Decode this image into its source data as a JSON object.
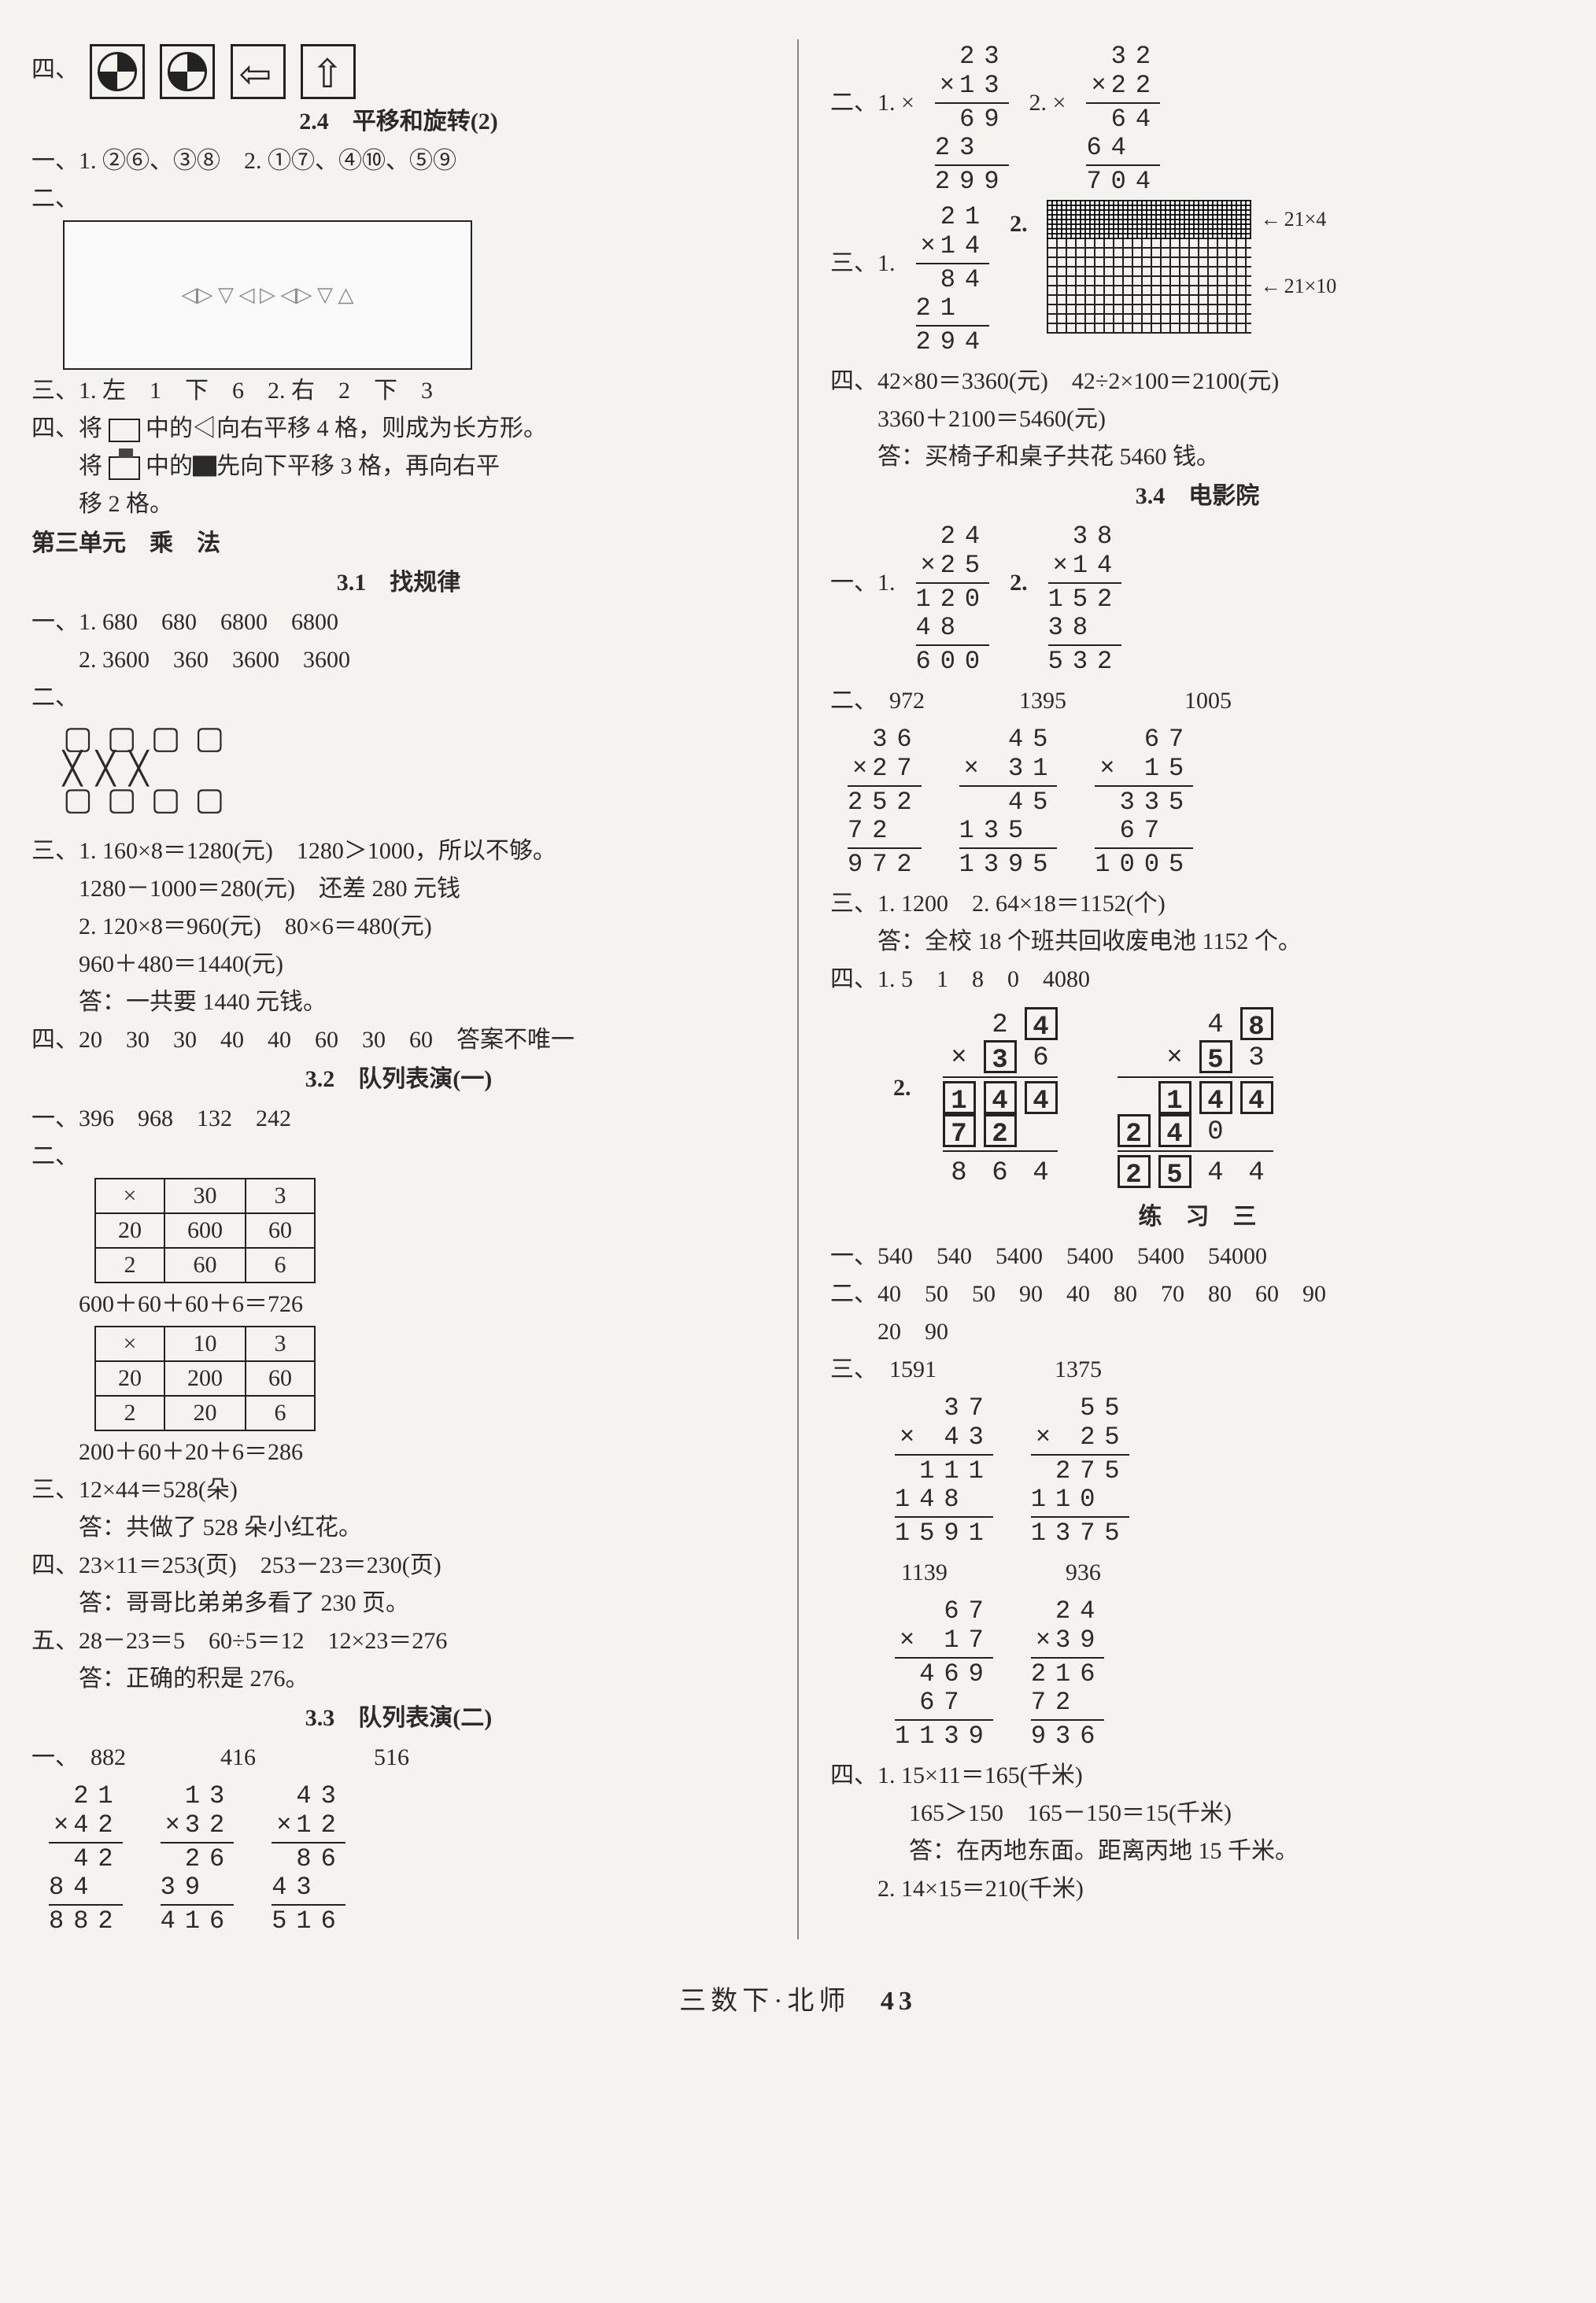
{
  "left": {
    "four_label": "四、",
    "s24_title": "2.4　平移和旋转(2)",
    "s24_l1": "一、1. ②⑥、③⑧　2. ①⑦、④⑩、⑤⑨",
    "s24_l2": "二、",
    "s24_l3": "三、1. 左　1　下　6　2. 右　2　下　3",
    "s24_l4a": "四、将",
    "s24_l4b": "中的◁向右平移 4 格，则成为长方形。",
    "s24_l5a": "将",
    "s24_l5b": "中的▇先向下平移 3 格，再向右平",
    "s24_l5c": "移 2 格。",
    "unit3": "第三单元　乘　法",
    "s31_title": "3.1　找规律",
    "s31_l1": "一、1. 680　680　6800　6800",
    "s31_l2": "　　2. 3600　360　3600　3600",
    "s31_l2b": "二、",
    "cross_top": "▢ ▢ ▢ ▢",
    "cross_bot": "▢ ▢ ▢ ▢",
    "s31_l3": "三、1. 160×8＝1280(元)　1280＞1000，所以不够。",
    "s31_l4": "1280－1000＝280(元)　还差 280 元钱",
    "s31_l5": "2. 120×8＝960(元)　80×6＝480(元)",
    "s31_l6": "960＋480＝1440(元)",
    "s31_l7": "答：一共要 1440 元钱。",
    "s31_l8": "四、20　30　30　40　40　60　30　60　答案不唯一",
    "s32_title": "3.2　队列表演(一)",
    "s32_l1": "一、396　968　132　242",
    "s32_l2": "二、",
    "t1": {
      "h": [
        "×",
        "30",
        "3"
      ],
      "r1": [
        "20",
        "600",
        "60"
      ],
      "r2": [
        "2",
        "60",
        "6"
      ]
    },
    "s32_l3": "600＋60＋60＋6＝726",
    "t2": {
      "h": [
        "×",
        "10",
        "3"
      ],
      "r1": [
        "20",
        "200",
        "60"
      ],
      "r2": [
        "2",
        "20",
        "6"
      ]
    },
    "s32_l4": "200＋60＋20＋6＝286",
    "s32_l5": "三、12×44＝528(朵)",
    "s32_l6": "答：共做了 528 朵小红花。",
    "s32_l7": "四、23×11＝253(页)　253－23＝230(页)",
    "s32_l8": "答：哥哥比弟弟多看了 230 页。",
    "s32_l9": "五、28－23＝5　60÷5＝12　12×23＝276",
    "s32_l10": "答：正确的积是 276。",
    "s33_title": "3.3　队列表演(二)",
    "s33_l1": "一、　882　　　　416　　　　　516",
    "m1": {
      "a": "21",
      "b": "42",
      "p1": "42",
      "p2": "84",
      "r": "882"
    },
    "m2": {
      "a": "13",
      "b": "32",
      "p1": "26",
      "p2": "39",
      "r": "416"
    },
    "m3": {
      "a": "43",
      "b": "12",
      "p1": "86",
      "p2": "43",
      "r": "516"
    }
  },
  "right": {
    "r0_l": "二、1. ×",
    "r0_m": "2. ×",
    "rm1": {
      "a": "23",
      "b": "13",
      "p1": "69",
      "p2": "23",
      "r": "299"
    },
    "rm2": {
      "a": "32",
      "b": "22",
      "p1": "64",
      "p2": "64",
      "r": "704"
    },
    "r1_l": "三、1.",
    "rm3": {
      "a": "21",
      "b": "14",
      "p1": "84",
      "p2": "21",
      "r": "294"
    },
    "grid_t": "21×4",
    "grid_b": "21×10",
    "r1_2": "2.",
    "r2": "四、42×80＝3360(元)　42÷2×100＝2100(元)",
    "r3": "3360＋2100＝5460(元)",
    "r4": "答：买椅子和桌子共花 5460 钱。",
    "s34_title": "3.4　电影院",
    "r5": "一、1.",
    "r5b": "2.",
    "rm4": {
      "a": "24",
      "b": "25",
      "p1": "120",
      "p2": "48",
      "r": "600"
    },
    "rm5": {
      "a": "38",
      "b": "14",
      "p1": "152",
      "p2": "38",
      "r": "532"
    },
    "r6": "二、　972　　　　1395　　　　　1005",
    "rm6": {
      "a": "36",
      "b": "27",
      "p1": "252",
      "p2": "72",
      "r": "972"
    },
    "rm7": {
      "a": "45",
      "b": "31",
      "p1": "45",
      "p2": "135",
      "r": "1395"
    },
    "rm8": {
      "a": "67",
      "b": "15",
      "p1": "335",
      "p2": "67",
      "r": "1005"
    },
    "r7": "三、1. 1200　2. 64×18＝1152(个)",
    "r8": "答：全校 18 个班共回收废电池 1152 个。",
    "r9": "四、1. 5　1　8　0　4080",
    "r9b": "2.",
    "puz1": {
      "r1": [
        " ",
        "2",
        "[4]"
      ],
      "r2": [
        "×",
        "[3]",
        "6"
      ],
      "r3": [
        "[1]",
        "[4]",
        "[4]"
      ],
      "r4": [
        "[7]",
        "[2]",
        " "
      ],
      "r5": [
        "8",
        "6",
        "4"
      ]
    },
    "puz2": {
      "r1": [
        " ",
        " ",
        "4",
        "[8]"
      ],
      "r2": [
        " ",
        "×",
        "[5]",
        "3"
      ],
      "r3": [
        " ",
        "[1]",
        "[4]",
        "[4]"
      ],
      "r4": [
        "[2]",
        "[4]",
        "0",
        " "
      ],
      "r5": [
        "[2]",
        "[5]",
        "4",
        "4"
      ]
    },
    "px_title": "练　习　三",
    "p1": "一、540　540　5400　5400　5400　54000",
    "p2": "二、40　50　50　90　40　80　70　80　60　90",
    "p2b": "20　90",
    "p3": "三、　1591　　　　　1375",
    "pm1": {
      "a": "37",
      "b": "43",
      "p1": "111",
      "p2": "148",
      "r": "1591"
    },
    "pm2": {
      "a": "55",
      "b": "25",
      "p1": "275",
      "p2": "110",
      "r": "1375"
    },
    "p3b": "　　　1139　　　　　936",
    "pm3": {
      "a": "67",
      "b": "17",
      "p1": "469",
      "p2": "67",
      "r": "1139"
    },
    "pm4": {
      "a": "24",
      "b": "39",
      "p1": "216",
      "p2": "72",
      "r": "936"
    },
    "p4": "四、1. 15×11＝165(千米)",
    "p5": "165＞150　165－150＝15(千米)",
    "p6": "答：在丙地东面。距离丙地 15 千米。",
    "p7": "2. 14×15＝210(千米)"
  },
  "footer": {
    "text": "三数下·北师",
    "page": "43"
  }
}
